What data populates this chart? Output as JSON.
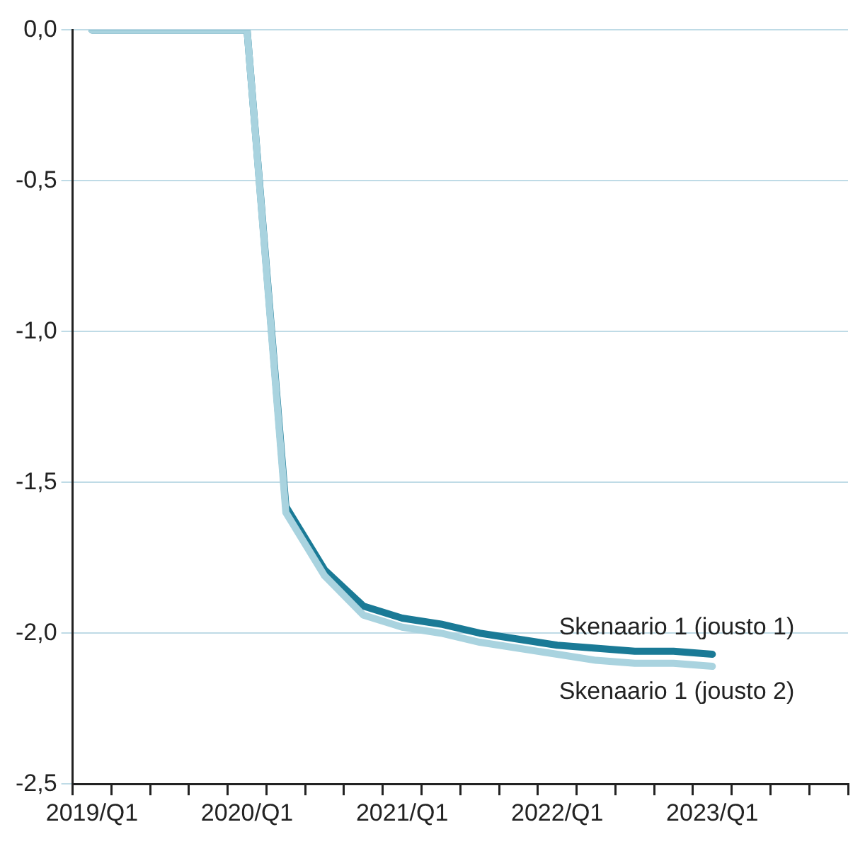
{
  "chart_data": {
    "type": "line",
    "categories": [
      "2019/Q1",
      null,
      null,
      null,
      "2020/Q1",
      null,
      null,
      null,
      "2021/Q1",
      null,
      null,
      null,
      "2022/Q1",
      null,
      null,
      null,
      "2023/Q1",
      null,
      null,
      null
    ],
    "series": [
      {
        "name": "Skenaario 1 (jousto 1)",
        "color": "#1a7a96",
        "values": [
          0,
          0,
          0,
          0,
          0,
          -1.58,
          -1.79,
          -1.91,
          -1.95,
          -1.97,
          -2.0,
          -2.02,
          -2.04,
          -2.05,
          -2.06,
          -2.06,
          -2.07,
          null,
          null,
          null
        ]
      },
      {
        "name": "Skenaario 1 (jousto 2)",
        "color": "#a9d3df",
        "values": [
          0,
          0,
          0,
          0,
          0,
          -1.6,
          -1.81,
          -1.94,
          -1.98,
          -2.0,
          -2.03,
          -2.05,
          -2.07,
          -2.09,
          -2.1,
          -2.1,
          -2.11,
          null,
          null,
          null
        ]
      }
    ],
    "ylim": [
      -2.5,
      0
    ],
    "yticks": [
      {
        "value": -2.5,
        "label": "-2,5"
      },
      {
        "value": -2,
        "label": "-2,0"
      },
      {
        "value": -1.5,
        "label": "-1,5"
      },
      {
        "value": -1,
        "label": "-1,0"
      },
      {
        "value": -0.5,
        "label": "-0,5"
      },
      {
        "value": 0,
        "label": "0,0"
      }
    ],
    "grid": "y",
    "legend": false,
    "marker": "none",
    "line_style": "solid"
  }
}
